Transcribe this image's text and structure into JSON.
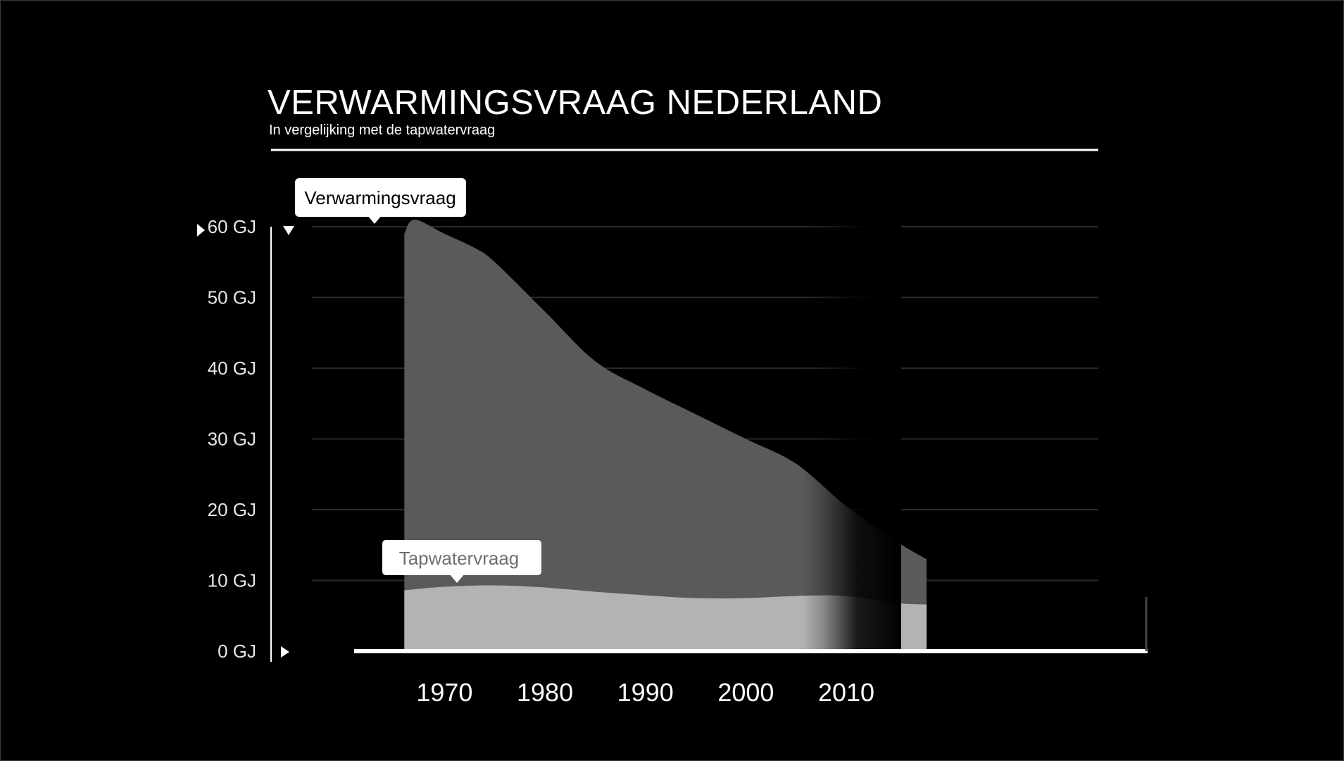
{
  "chart_data": {
    "type": "area",
    "title": "VERWARMINGSVRAAG NEDERLAND",
    "subtitle": "In vergelijking met de tapwatervraag",
    "x_ticks": [
      "1970",
      "1980",
      "1990",
      "2000",
      "2010"
    ],
    "y_ticks": [
      "0 GJ",
      "10 GJ",
      "20 GJ",
      "30 GJ",
      "40 GJ",
      "50 GJ",
      "60 GJ"
    ],
    "ylim": [
      0,
      60
    ],
    "xlim": [
      1961,
      2040
    ],
    "grid": true,
    "series": [
      {
        "name": "Verwarmingsvraag",
        "color": "#5a5a5a",
        "x": [
          1966,
          1967,
          1970,
          1973,
          1975,
          1980,
          1985,
          1990,
          1995,
          2000,
          2005,
          2010,
          2015,
          2018
        ],
        "values": [
          59,
          61,
          59,
          57,
          55,
          48,
          41,
          37,
          33.5,
          30,
          26.5,
          20.5,
          15.5,
          13
        ]
      },
      {
        "name": "Tapwatervraag",
        "color": "#b3b3b3",
        "x": [
          1966,
          1970,
          1975,
          1980,
          1985,
          1990,
          1995,
          2000,
          2005,
          2010,
          2015,
          2018
        ],
        "values": [
          8.6,
          9.1,
          9.3,
          9.0,
          8.4,
          7.9,
          7.5,
          7.5,
          7.8,
          7.8,
          6.8,
          6.6
        ]
      }
    ],
    "annotations": [
      "Verwarmingsvraag",
      "Tapwatervraag"
    ]
  }
}
